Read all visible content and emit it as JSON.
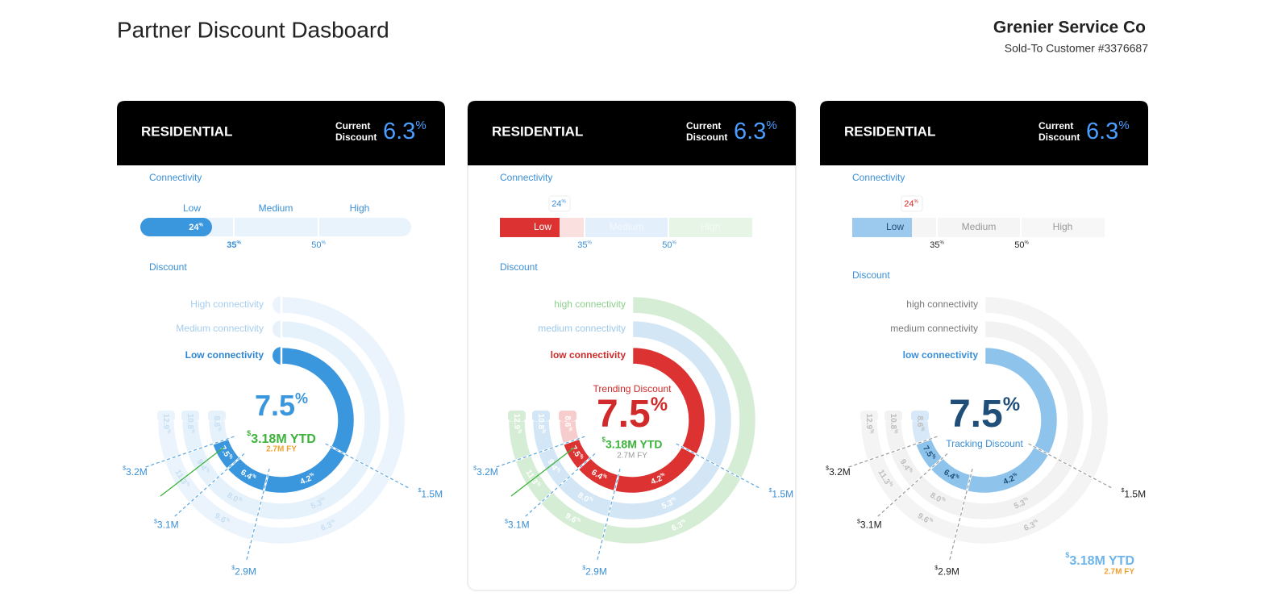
{
  "header": {
    "title": "Partner Discount Dasboard",
    "company": "Grenier Service Co",
    "customer": "Sold-To Customer #3376687"
  },
  "symbols": {
    "percent": "%",
    "currency": "$"
  },
  "cards": [
    {
      "title": "RESIDENTIAL",
      "current_label": [
        "Current",
        "Discount"
      ],
      "current_value": 6.3,
      "connectivity": {
        "label": "Connectivity",
        "levels": [
          "Low",
          "Medium",
          "High"
        ],
        "value": 24,
        "thresholds": [
          35,
          50
        ]
      },
      "discount": {
        "label": "Discount",
        "rings": [
          {
            "name": "Low connectivity",
            "values": [
              4.2,
              6.4,
              7.5,
              8.6
            ]
          },
          {
            "name": "Medium connectivity",
            "values": [
              5.3,
              {
                "value": 8,
                "label": "8.0"
              },
              9.4,
              10.8
            ]
          },
          {
            "name": "High connectivity",
            "values": [
              6.3,
              9.6,
              11.3,
              12.9
            ]
          }
        ],
        "spend_levels": [
          "1.5M",
          "2.9M",
          "3.1M",
          "3.2M"
        ],
        "center_value": 7.5,
        "ytd": "3.18M YTD",
        "fy": "2.7M FY"
      }
    },
    {
      "title": "RESIDENTIAL",
      "current_label": [
        "Current",
        "Discount"
      ],
      "current_value": 6.3,
      "connectivity": {
        "label": "Connectivity",
        "levels": [
          "Low",
          "Medium",
          "High"
        ],
        "value": 24,
        "thresholds": [
          35,
          50
        ]
      },
      "discount": {
        "label": "Discount",
        "rings": [
          {
            "name": "low connectivity",
            "values": [
              4.2,
              6.4,
              7.5,
              8.6
            ]
          },
          {
            "name": "medium connectivity",
            "values": [
              5.3,
              {
                "value": 8,
                "label": "8.0"
              },
              9.4,
              10.8
            ]
          },
          {
            "name": "high connectivity",
            "values": [
              6.3,
              9.6,
              11.3,
              12.9
            ]
          }
        ],
        "spend_levels": [
          "1.5M",
          "2.9M",
          "3.1M",
          "3.2M"
        ],
        "center_caption": "Trending Discount",
        "center_value": 7.5,
        "ytd": "3.18M YTD",
        "fy": "2.7M FY"
      }
    },
    {
      "title": "RESIDENTIAL",
      "current_label": [
        "Current",
        "Discount"
      ],
      "current_value": 6.3,
      "connectivity": {
        "label": "Connectivity",
        "levels": [
          "Low",
          "Medium",
          "High"
        ],
        "value": 24,
        "thresholds": [
          35,
          50
        ]
      },
      "discount": {
        "label": "Discount",
        "rings": [
          {
            "name": "low connectivity",
            "values": [
              4.2,
              6.4,
              7.5,
              8.6
            ]
          },
          {
            "name": "medium connectivity",
            "values": [
              5.3,
              {
                "value": 8,
                "label": "8.0"
              },
              9.4,
              10.8
            ]
          },
          {
            "name": "high connectivity",
            "values": [
              6.3,
              9.6,
              11.3,
              12.9
            ]
          }
        ],
        "spend_levels": [
          "1.5M",
          "2.9M",
          "3.1M",
          "3.2M"
        ],
        "center_caption": "Tracking Discount",
        "center_value": 7.5,
        "ytd": "3.18M YTD",
        "fy": "2.7M FY"
      }
    }
  ]
}
